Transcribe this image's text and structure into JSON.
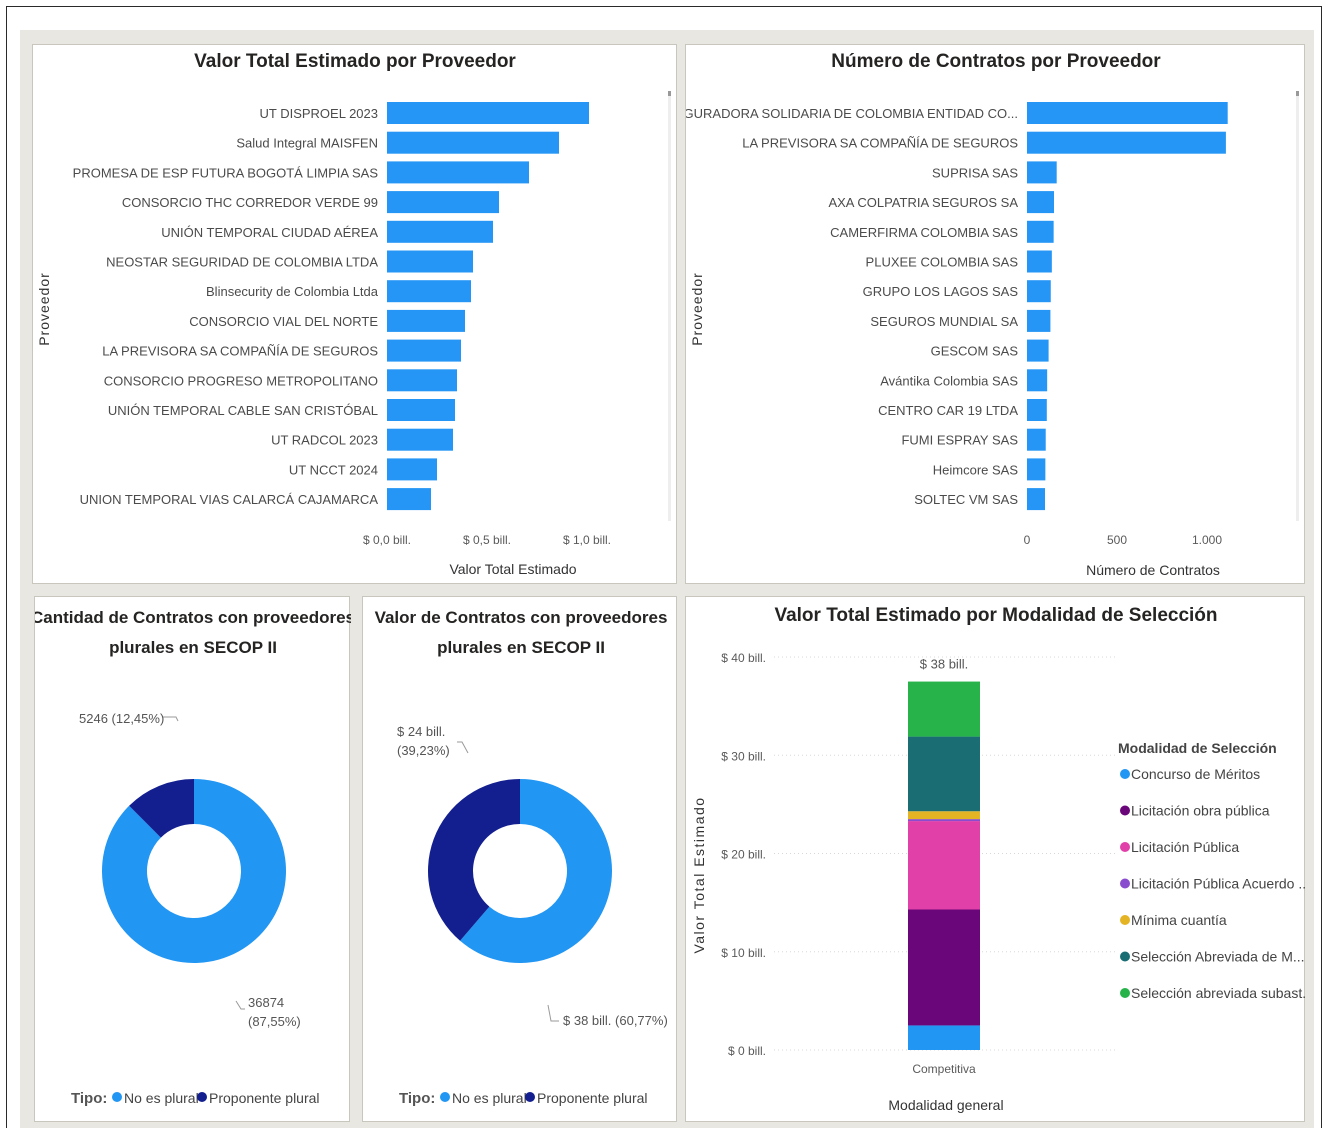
{
  "colors": {
    "bar": "#2596f5",
    "no_plural": "#2196f3",
    "plural": "#131f8f",
    "concurso": "#2196f3",
    "licitacion_obra": "#6a057a",
    "licitacion_publica": "#e040a8",
    "licitacion_acuerdo": "#8a4ccf",
    "minima": "#e5b425",
    "seleccion_menor": "#1a6e73",
    "seleccion_subasta": "#27b34a"
  },
  "legend_tipo": {
    "label": "Tipo:",
    "items": [
      "No es plural",
      "Proponente plural"
    ]
  },
  "chart_data": [
    {
      "type": "bar",
      "orientation": "horizontal",
      "title": "Valor Total Estimado por Proveedor",
      "xlabel": "Valor Total Estimado",
      "ylabel": "Proveedor",
      "x_ticks": [
        "$ 0,0 bill.",
        "$ 0,5 bill.",
        "$ 1,0 bill."
      ],
      "xlim": [
        0,
        1.2
      ],
      "categories": [
        "UT DISPROEL 2023",
        "Salud Integral MAISFEN",
        "PROMESA DE ESP FUTURA BOGOTÁ LIMPIA SAS",
        "CONSORCIO THC CORREDOR VERDE 99",
        "UNIÓN TEMPORAL CIUDAD AÉREA",
        "NEOSTAR SEGURIDAD DE COLOMBIA LTDA",
        "Blinsecurity de Colombia Ltda",
        "CONSORCIO VIAL DEL NORTE",
        "LA PREVISORA SA COMPAÑÍA DE SEGUROS",
        "CONSORCIO PROGRESO METROPOLITANO",
        "UNIÓN TEMPORAL CABLE SAN CRISTÓBAL",
        "UT RADCOL 2023",
        "UT NCCT 2024",
        "UNION TEMPORAL VIAS CALARCÁ CAJAMARCA"
      ],
      "values": [
        1.01,
        0.86,
        0.71,
        0.56,
        0.53,
        0.43,
        0.42,
        0.39,
        0.37,
        0.35,
        0.34,
        0.33,
        0.25,
        0.22
      ]
    },
    {
      "type": "bar",
      "orientation": "horizontal",
      "title": "Número de Contratos por Proveedor",
      "xlabel": "Número de Contratos",
      "ylabel": "Proveedor",
      "x_ticks": [
        "0",
        "500",
        "1.000"
      ],
      "xlim": [
        0,
        1500
      ],
      "categories": [
        "ASEGURADORA SOLIDARIA DE COLOMBIA ENTIDAD CO...",
        "LA PREVISORA SA COMPAÑÍA DE SEGUROS",
        "SUPRISA SAS",
        "AXA COLPATRIA SEGUROS SA",
        "CAMERFIRMA COLOMBIA SAS",
        "PLUXEE COLOMBIA SAS",
        "GRUPO LOS LAGOS SAS",
        "SEGUROS MUNDIAL SA",
        "GESCOM SAS",
        "Avántika Colombia SAS",
        "CENTRO CAR 19 LTDA",
        "FUMI ESPRAY SAS",
        "Heimcore SAS",
        "SOLTEC VM SAS"
      ],
      "values": [
        1115,
        1105,
        165,
        150,
        148,
        138,
        132,
        130,
        120,
        112,
        110,
        104,
        102,
        100
      ]
    },
    {
      "type": "pie",
      "variant": "donut",
      "title": "Cantidad de Contratos con proveedores plurales en SECOP II",
      "labels": [
        "No es plural",
        "Proponente plural"
      ],
      "values": [
        36874,
        5246
      ],
      "data_labels": [
        "36874 (87,55%)",
        "5246 (12,45%)"
      ]
    },
    {
      "type": "pie",
      "variant": "donut",
      "title": "Valor de Contratos con proveedores plurales en SECOP II",
      "labels": [
        "No es plural",
        "Proponente plural"
      ],
      "values": [
        38,
        24
      ],
      "data_labels": [
        "$ 38 bill. (60,77%)",
        "$ 24 bill. (39,23%)"
      ]
    },
    {
      "type": "bar",
      "variant": "stacked",
      "title": "Valor Total Estimado por Modalidad de Selección",
      "xlabel": "Modalidad general",
      "ylabel": "Valor Total Estimado",
      "categories": [
        "Competitiva"
      ],
      "y_ticks": [
        "$ 0 bill.",
        "$ 10 bill.",
        "$ 20 bill.",
        "$ 30 bill.",
        "$ 40 bill."
      ],
      "ylim": [
        0,
        40
      ],
      "total_label": "$ 38 bill.",
      "legend_title": "Modalidad de Selección",
      "legend_labels": [
        "Concurso de Méritos",
        "Licitación obra pública",
        "Licitación Pública",
        "Licitación Pública Acuerdo ...",
        "Mínima cuantía",
        "Selección Abreviada de M...",
        "Selección abreviada subast..."
      ],
      "series": [
        {
          "name": "Concurso de Méritos",
          "values": [
            2.5
          ]
        },
        {
          "name": "Licitación obra pública",
          "values": [
            11.8
          ]
        },
        {
          "name": "Licitación Pública",
          "values": [
            9.0
          ]
        },
        {
          "name": "Licitación Pública Acuerdo Marco",
          "values": [
            0.2
          ]
        },
        {
          "name": "Mínima cuantía",
          "values": [
            0.8
          ]
        },
        {
          "name": "Selección Abreviada de Menor Cuantía",
          "values": [
            7.6
          ]
        },
        {
          "name": "Selección abreviada subasta inversa",
          "values": [
            5.6
          ]
        }
      ]
    }
  ]
}
